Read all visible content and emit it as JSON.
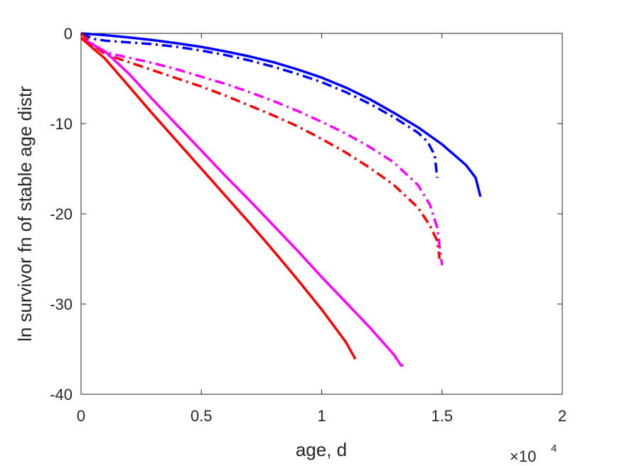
{
  "chart_data": {
    "type": "line",
    "title": "",
    "xlabel": "age, d",
    "ylabel": "ln survivor fn of stable age distr",
    "x_exponent_label": "×10",
    "x_exponent_power": "4",
    "xlim": [
      0,
      20000
    ],
    "ylim": [
      -40,
      0
    ],
    "x_ticks": [
      0,
      5000,
      10000,
      15000,
      20000
    ],
    "x_tick_labels": [
      "0",
      "0.5",
      "1",
      "1.5",
      "2"
    ],
    "y_ticks": [
      0,
      -10,
      -20,
      -30,
      -40
    ],
    "y_tick_labels": [
      "0",
      "-10",
      "-20",
      "-30",
      "-40"
    ],
    "grid": false,
    "legend": "none",
    "series": [
      {
        "color": "#0000ff",
        "style": "solid",
        "x": [
          0,
          1000,
          2000,
          3000,
          4000,
          5000,
          6000,
          7000,
          8000,
          9000,
          10000,
          11000,
          12000,
          13000,
          14000,
          15000,
          16000,
          16400,
          16600
        ],
        "y": [
          0,
          -0.2,
          -0.45,
          -0.75,
          -1.1,
          -1.5,
          -2.0,
          -2.55,
          -3.2,
          -4.0,
          -4.9,
          -6.0,
          -7.3,
          -8.8,
          -10.4,
          -12.3,
          -14.6,
          -16.0,
          -18.1
        ]
      },
      {
        "color": "#0000ff",
        "style": "dashdot",
        "x": [
          0,
          500,
          1000,
          2000,
          3000,
          4000,
          5000,
          6000,
          7000,
          8000,
          9000,
          10000,
          11000,
          12000,
          13000,
          14000,
          14400,
          14700,
          14800
        ],
        "y": [
          0,
          -0.6,
          -0.8,
          -1.0,
          -1.2,
          -1.5,
          -1.9,
          -2.4,
          -3.0,
          -3.7,
          -4.5,
          -5.4,
          -6.5,
          -7.8,
          -9.3,
          -11.0,
          -12.0,
          -13.5,
          -16.0
        ]
      },
      {
        "color": "#ff00ff",
        "style": "dashdot",
        "x": [
          0,
          500,
          1000,
          2000,
          3000,
          4000,
          5000,
          6000,
          7000,
          8000,
          9000,
          10000,
          11000,
          12000,
          13000,
          14000,
          14500,
          14800,
          15000
        ],
        "y": [
          0,
          -1.2,
          -2.1,
          -2.7,
          -3.3,
          -4.0,
          -4.8,
          -5.6,
          -6.5,
          -7.5,
          -8.6,
          -9.8,
          -11.1,
          -12.6,
          -14.3,
          -16.8,
          -19.0,
          -21.5,
          -25.7
        ]
      },
      {
        "color": "#ff0000",
        "style": "dashdot",
        "x": [
          0,
          500,
          1000,
          2000,
          3000,
          4000,
          5000,
          6000,
          7000,
          8000,
          9000,
          10000,
          11000,
          12000,
          13000,
          14000,
          14500,
          14800,
          14900
        ],
        "y": [
          0,
          -1.3,
          -2.3,
          -3.2,
          -4.1,
          -5.0,
          -5.9,
          -6.9,
          -8.0,
          -9.1,
          -10.3,
          -11.7,
          -13.2,
          -14.9,
          -16.8,
          -19.3,
          -21.3,
          -23.0,
          -25.0
        ]
      },
      {
        "color": "#ff00ff",
        "style": "solid",
        "x": [
          0,
          1000,
          2000,
          3000,
          4000,
          5000,
          6000,
          7000,
          8000,
          9000,
          10000,
          11000,
          12000,
          13000,
          13300,
          13400
        ],
        "y": [
          -0.5,
          -2.0,
          -4.5,
          -7.4,
          -10.2,
          -13.0,
          -15.8,
          -18.5,
          -21.3,
          -24.1,
          -27.0,
          -29.8,
          -32.6,
          -35.6,
          -36.8,
          -36.8
        ]
      },
      {
        "color": "#ff0000",
        "style": "solid",
        "x": [
          0,
          1000,
          2000,
          3000,
          4000,
          5000,
          6000,
          7000,
          8000,
          9000,
          10000,
          11000,
          11400
        ],
        "y": [
          -0.5,
          -2.8,
          -5.9,
          -9.0,
          -12.0,
          -15.0,
          -18.0,
          -21.0,
          -24.1,
          -27.3,
          -30.6,
          -34.2,
          -36.1
        ]
      }
    ]
  }
}
